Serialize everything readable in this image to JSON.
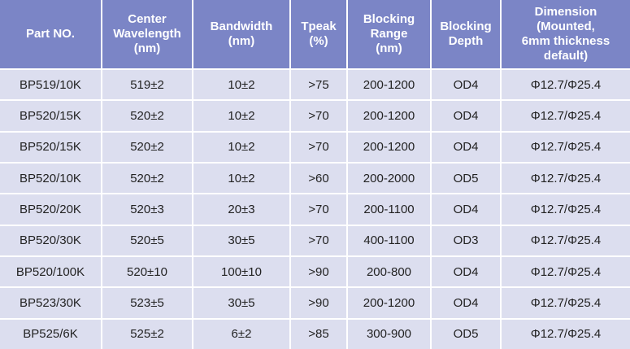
{
  "table": {
    "header": [
      [
        "Part NO."
      ],
      [
        "Center",
        "Wavelength",
        "(nm)"
      ],
      [
        "Bandwidth",
        "(nm)"
      ],
      [
        "Tpeak",
        "(%)"
      ],
      [
        "Blocking",
        "Range",
        "(nm)"
      ],
      [
        "Blocking",
        "Depth"
      ],
      [
        "Dimension",
        "(Mounted,",
        "6mm thickness",
        "default)"
      ]
    ],
    "rows": [
      [
        "BP519/10K",
        "519±2",
        "10±2",
        ">75",
        "200-1200",
        "OD4",
        "Φ12.7/Φ25.4"
      ],
      [
        "BP520/15K",
        "520±2",
        "10±2",
        ">70",
        "200-1200",
        "OD4",
        "Φ12.7/Φ25.4"
      ],
      [
        "BP520/15K",
        "520±2",
        "10±2",
        ">70",
        "200-1200",
        "OD4",
        "Φ12.7/Φ25.4"
      ],
      [
        "BP520/10K",
        "520±2",
        "10±2",
        ">60",
        "200-2000",
        "OD5",
        "Φ12.7/Φ25.4"
      ],
      [
        "BP520/20K",
        "520±3",
        "20±3",
        ">70",
        "200-1100",
        "OD4",
        "Φ12.7/Φ25.4"
      ],
      [
        "BP520/30K",
        "520±5",
        "30±5",
        ">70",
        "400-1100",
        "OD3",
        "Φ12.7/Φ25.4"
      ],
      [
        "BP520/100K",
        "520±10",
        "100±10",
        ">90",
        "200-800",
        "OD4",
        "Φ12.7/Φ25.4"
      ],
      [
        "BP523/30K",
        "523±5",
        "30±5",
        ">90",
        "200-1200",
        "OD4",
        "Φ12.7/Φ25.4"
      ],
      [
        "BP525/6K",
        "525±2",
        "6±2",
        ">85",
        "300-900",
        "OD5",
        "Φ12.7/Φ25.4"
      ]
    ]
  }
}
